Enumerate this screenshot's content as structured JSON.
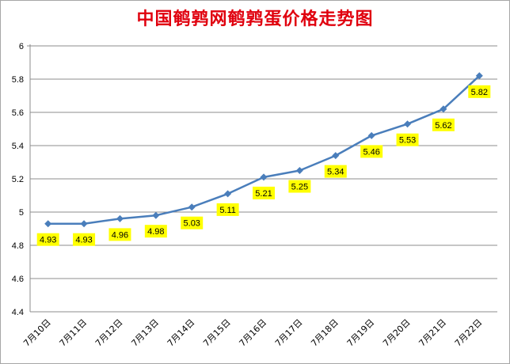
{
  "chart_data": {
    "type": "line",
    "title": "中国鹌鹑网鹌鹑蛋价格走势图",
    "categories": [
      "7月10日",
      "7月11日",
      "7月12日",
      "7月13日",
      "7月14日",
      "7月15日",
      "7月16日",
      "7月17日",
      "7月18日",
      "7月19日",
      "7月20日",
      "7月21日",
      "7月22日"
    ],
    "series": [
      {
        "values": [
          4.93,
          4.93,
          4.96,
          4.98,
          5.03,
          5.11,
          5.21,
          5.25,
          5.34,
          5.46,
          5.53,
          5.62,
          5.82
        ]
      }
    ],
    "ylim": [
      4.4,
      6
    ],
    "yticks": [
      "4.4",
      "4.6",
      "4.8",
      "5",
      "5.2",
      "5.4",
      "5.6",
      "5.8",
      "6"
    ],
    "data_labels": [
      "4.93",
      "4.93",
      "4.96",
      "4.98",
      "5.03",
      "5.11",
      "5.21",
      "5.25",
      "5.34",
      "5.46",
      "5.53",
      "5.62",
      "5.82"
    ],
    "grid": true,
    "line_color": "#4a7ebb",
    "label_bg_color": "#ffff00"
  }
}
